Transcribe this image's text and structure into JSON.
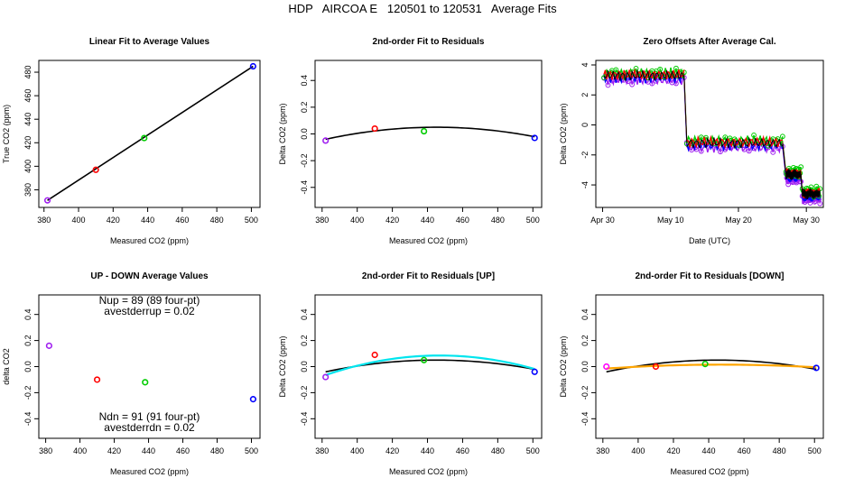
{
  "figure_title": "HDP   AIRCOA E   120501 to 120531   Average Fits",
  "colors": {
    "purple": "#a020f0",
    "red": "#ff0000",
    "green": "#00cc00",
    "blue": "#0000ff",
    "black": "#000000",
    "cyan": "#00e5ee",
    "orange": "#ffa500",
    "magenta": "#ff00ff"
  },
  "chart_data": [
    {
      "id": "linear-fit",
      "type": "scatter",
      "title": "Linear Fit to Average Values",
      "xlabel": "Measured CO2 (ppm)",
      "ylabel": "True CO2 (ppm)",
      "xlim": [
        377,
        505
      ],
      "ylim": [
        365,
        490
      ],
      "xticks": [
        380,
        400,
        420,
        440,
        460,
        480,
        500
      ],
      "yticks": [
        380,
        400,
        420,
        440,
        460,
        480
      ],
      "points": [
        {
          "x": 382,
          "y": 371,
          "color": "purple"
        },
        {
          "x": 410,
          "y": 397,
          "color": "red"
        },
        {
          "x": 438,
          "y": 424,
          "color": "green"
        },
        {
          "x": 501,
          "y": 485,
          "color": "blue"
        }
      ],
      "lines": [
        {
          "kind": "linear",
          "x": [
            382,
            501
          ],
          "y": [
            371,
            485
          ],
          "color": "black"
        }
      ]
    },
    {
      "id": "residual-fit",
      "type": "scatter",
      "title": "2nd-order Fit to Residuals",
      "xlabel": "Measured CO2 (ppm)",
      "ylabel": "Delta CO2 (ppm)",
      "xlim": [
        376,
        505
      ],
      "ylim": [
        -0.55,
        0.55
      ],
      "xticks": [
        380,
        400,
        420,
        440,
        460,
        480,
        500
      ],
      "yticks": [
        -0.4,
        -0.2,
        0.0,
        0.2,
        0.4
      ],
      "points": [
        {
          "x": 382,
          "y": -0.05,
          "color": "purple"
        },
        {
          "x": 410,
          "y": 0.04,
          "color": "red"
        },
        {
          "x": 438,
          "y": 0.02,
          "color": "green"
        },
        {
          "x": 501,
          "y": -0.03,
          "color": "blue"
        }
      ],
      "lines": [
        {
          "kind": "quadratic",
          "x0": 382,
          "x1": 501,
          "vertex_x": 445,
          "vertex_y": 0.05,
          "y0": -0.04,
          "color": "black"
        }
      ]
    },
    {
      "id": "zero-offsets",
      "type": "line",
      "title": "Zero Offsets After Average Cal.",
      "xlabel": "Date (UTC)",
      "ylabel": "Delta CO2 (ppm)",
      "xlim": [
        -1,
        32.5
      ],
      "ylim": [
        -5.5,
        4.3
      ],
      "xticks": [
        0,
        10,
        20,
        30
      ],
      "xticklabels": [
        "Apr 30",
        "May 10",
        "May 20",
        "May 30"
      ],
      "yticks": [
        -4,
        -2,
        0,
        2,
        4
      ],
      "segments": [
        {
          "x0": 0.2,
          "x1": 12.0,
          "level": 3.3
        },
        {
          "x0": 12.4,
          "x1": 26.5,
          "level": -1.2
        },
        {
          "x0": 27.0,
          "x1": 29.2,
          "level": -3.3
        },
        {
          "x0": 29.4,
          "x1": 32.0,
          "level": -4.6
        }
      ],
      "series": [
        {
          "color": "purple",
          "offset": -0.3
        },
        {
          "color": "blue",
          "offset": -0.15
        },
        {
          "color": "green",
          "offset": 0.15
        },
        {
          "color": "red",
          "offset": 0.05
        },
        {
          "color": "black",
          "offset": 0.0
        }
      ]
    },
    {
      "id": "up-down",
      "type": "scatter",
      "title": "UP - DOWN Average Values",
      "xlabel": "Measured CO2 (ppm)",
      "ylabel": "delta CO2",
      "xlim": [
        376,
        505
      ],
      "ylim": [
        -0.55,
        0.55
      ],
      "xticks": [
        380,
        400,
        420,
        440,
        460,
        480,
        500
      ],
      "yticks": [
        -0.4,
        -0.2,
        0.0,
        0.2,
        0.4
      ],
      "points": [
        {
          "x": 382,
          "y": 0.16,
          "color": "purple"
        },
        {
          "x": 410,
          "y": -0.1,
          "color": "red"
        },
        {
          "x": 438,
          "y": -0.12,
          "color": "green"
        },
        {
          "x": 501,
          "y": -0.25,
          "color": "blue"
        }
      ],
      "annotations": {
        "nup": "Nup = 89 (89 four-pt)",
        "avestderrup": "avestderrup =  0.02",
        "ndn": "Ndn = 91 (91 four-pt)",
        "avestderrdn": "avestderrdn =  0.02"
      }
    },
    {
      "id": "residual-fit-up",
      "type": "scatter",
      "title": "2nd-order Fit to Residuals [UP]",
      "xlabel": "Measured CO2 (ppm)",
      "ylabel": "Delta CO2 (ppm)",
      "xlim": [
        376,
        505
      ],
      "ylim": [
        -0.55,
        0.55
      ],
      "xticks": [
        380,
        400,
        420,
        440,
        460,
        480,
        500
      ],
      "yticks": [
        -0.4,
        -0.2,
        0.0,
        0.2,
        0.4
      ],
      "points": [
        {
          "x": 382,
          "y": -0.08,
          "color": "purple"
        },
        {
          "x": 410,
          "y": 0.09,
          "color": "red"
        },
        {
          "x": 438,
          "y": 0.05,
          "color": "green"
        },
        {
          "x": 501,
          "y": -0.04,
          "color": "blue"
        }
      ],
      "lines": [
        {
          "kind": "quadratic",
          "x0": 382,
          "x1": 501,
          "vertex_x": 445,
          "vertex_y": 0.05,
          "y0": -0.04,
          "color": "black"
        },
        {
          "kind": "quadratic",
          "x0": 382,
          "x1": 501,
          "vertex_x": 447,
          "vertex_y": 0.085,
          "y0": -0.065,
          "color": "cyan"
        }
      ]
    },
    {
      "id": "residual-fit-down",
      "type": "scatter",
      "title": "2nd-order Fit to Residuals [DOWN]",
      "xlabel": "Measured CO2 (ppm)",
      "ylabel": "Delta CO2 (ppm)",
      "xlim": [
        376,
        505
      ],
      "ylim": [
        -0.55,
        0.55
      ],
      "xticks": [
        380,
        400,
        420,
        440,
        460,
        480,
        500
      ],
      "yticks": [
        -0.4,
        -0.2,
        0.0,
        0.2,
        0.4
      ],
      "points": [
        {
          "x": 382,
          "y": 0.0,
          "color": "magenta"
        },
        {
          "x": 410,
          "y": 0.0,
          "color": "red"
        },
        {
          "x": 438,
          "y": 0.02,
          "color": "green"
        },
        {
          "x": 501,
          "y": -0.01,
          "color": "blue"
        }
      ],
      "lines": [
        {
          "kind": "quadratic",
          "x0": 382,
          "x1": 501,
          "vertex_x": 445,
          "vertex_y": 0.05,
          "y0": -0.04,
          "color": "black"
        },
        {
          "kind": "quadratic",
          "x0": 382,
          "x1": 501,
          "vertex_x": 447,
          "vertex_y": 0.015,
          "y0": -0.015,
          "color": "orange"
        }
      ]
    }
  ]
}
